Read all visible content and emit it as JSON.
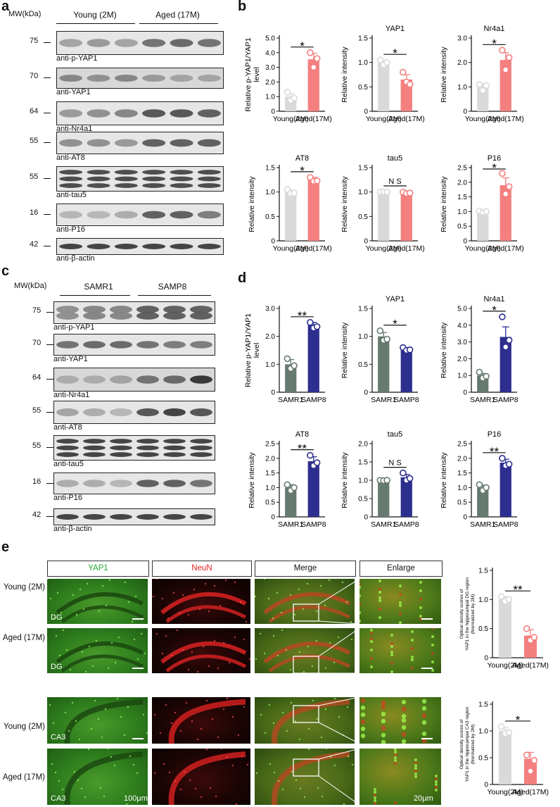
{
  "panels": {
    "a": "a",
    "b": "b",
    "c": "c",
    "d": "d",
    "e": "e"
  },
  "western_a": {
    "mw_header": "MW(kDa)",
    "group1": "Young (2M)",
    "group2": "Aged (17M)",
    "blots": [
      {
        "mw": "75",
        "label": "anti-p-YAP1",
        "style": "dark",
        "pattern": [
          0.35,
          0.4,
          0.35,
          0.6,
          0.65,
          0.6
        ]
      },
      {
        "mw": "70",
        "label": "anti-YAP1",
        "style": "noisy",
        "pattern": [
          0.5,
          0.45,
          0.5,
          0.4,
          0.35,
          0.35
        ]
      },
      {
        "mw": "64",
        "label": "anti-Nr4a1",
        "style": "dark",
        "pattern": [
          0.4,
          0.45,
          0.5,
          0.75,
          0.75,
          0.7
        ]
      },
      {
        "mw": "55",
        "label": "anti-AT8",
        "style": "dark",
        "pattern": [
          0.45,
          0.45,
          0.4,
          0.7,
          0.7,
          0.7
        ]
      },
      {
        "mw": "55",
        "label": "anti-tau5",
        "style": "multi",
        "pattern": [
          0.8,
          0.8,
          0.8,
          0.8,
          0.8,
          0.8
        ]
      },
      {
        "mw": "16",
        "label": "anti-P16",
        "style": "soft",
        "pattern": [
          0.25,
          0.25,
          0.3,
          0.7,
          0.7,
          0.55
        ]
      },
      {
        "mw": "42",
        "label": "anti-β-actin",
        "style": "dark",
        "pattern": [
          0.85,
          0.85,
          0.85,
          0.85,
          0.85,
          0.85
        ]
      }
    ]
  },
  "western_c": {
    "mw_header": "MW(kDa)",
    "group1": "SAMR1",
    "group2": "SAMP8",
    "blots": [
      {
        "mw": "75",
        "label": "anti-p-YAP1",
        "style": "double",
        "pattern": [
          0.45,
          0.5,
          0.5,
          0.7,
          0.7,
          0.7
        ]
      },
      {
        "mw": "70",
        "label": "anti-YAP1",
        "style": "dark",
        "pattern": [
          0.6,
          0.65,
          0.65,
          0.6,
          0.55,
          0.55
        ]
      },
      {
        "mw": "64",
        "label": "anti-Nr4a1",
        "style": "noisy",
        "pattern": [
          0.3,
          0.3,
          0.35,
          0.6,
          0.65,
          0.9
        ]
      },
      {
        "mw": "55",
        "label": "anti-AT8",
        "style": "dark",
        "pattern": [
          0.35,
          0.3,
          0.25,
          0.75,
          0.85,
          0.75
        ]
      },
      {
        "mw": "55",
        "label": "anti-tau5",
        "style": "multi",
        "pattern": [
          0.85,
          0.85,
          0.85,
          0.85,
          0.85,
          0.85
        ]
      },
      {
        "mw": "16",
        "label": "anti-P16",
        "style": "soft",
        "pattern": [
          0.3,
          0.3,
          0.25,
          0.7,
          0.7,
          0.6
        ]
      },
      {
        "mw": "42",
        "label": "anti-β-actin",
        "style": "dark",
        "pattern": [
          0.85,
          0.85,
          0.85,
          0.85,
          0.85,
          0.85
        ]
      }
    ]
  },
  "colors": {
    "young": "#d9d9d9",
    "aged": "#f47f7f",
    "aged_dot": "#f47f7f",
    "samr1": "#667a70",
    "samp8": "#2d2f8f",
    "yap1_header": "#22aa33",
    "neun_header": "#e02020"
  },
  "chart_data": [
    {
      "type": "bar",
      "panel": "b",
      "title": "",
      "ylabel": "Relative p-YAP1/YAP1 level",
      "categories": [
        "Young(2M)",
        "Aged(17M)"
      ],
      "values": [
        1.0,
        3.55
      ],
      "errors": [
        0.22,
        0.4
      ],
      "points": [
        [
          1.3,
          0.75,
          0.9
        ],
        [
          4.0,
          3.0,
          3.6
        ]
      ],
      "ylim": [
        0,
        5
      ],
      "ticks": [
        0,
        1.0,
        2.0,
        3.0,
        4.0,
        5.0
      ],
      "sig": "*",
      "colors": [
        "#d9d9d9",
        "#f47f7f"
      ]
    },
    {
      "type": "bar",
      "panel": "b",
      "title": "YAP1",
      "ylabel": "Relative intensity",
      "categories": [
        "Young(2M)",
        "Aged(17M)"
      ],
      "values": [
        1.0,
        0.65
      ],
      "errors": [
        0.04,
        0.1
      ],
      "points": [
        [
          1.05,
          0.95,
          1.0
        ],
        [
          0.8,
          0.6,
          0.55
        ]
      ],
      "ylim": [
        0,
        1.5
      ],
      "ticks": [
        0,
        0.5,
        1.0,
        1.5
      ],
      "sig": "*",
      "colors": [
        "#d9d9d9",
        "#f47f7f"
      ]
    },
    {
      "type": "bar",
      "panel": "b",
      "title": "Nr4a1",
      "ylabel": "Relative intensity",
      "categories": [
        "Young(2M)",
        "Aged(17M)"
      ],
      "values": [
        1.0,
        2.1
      ],
      "errors": [
        0.12,
        0.3
      ],
      "points": [
        [
          1.1,
          0.85,
          1.05
        ],
        [
          2.5,
          1.7,
          2.2
        ]
      ],
      "ylim": [
        0,
        3
      ],
      "ticks": [
        0,
        1.0,
        2.0,
        3.0
      ],
      "sig": "*",
      "colors": [
        "#d9d9d9",
        "#f47f7f"
      ]
    },
    {
      "type": "bar",
      "panel": "b",
      "title": "AT8",
      "ylabel": "Relative intensity",
      "categories": [
        "Young(2M)",
        "Aged(17M)"
      ],
      "values": [
        1.0,
        1.25
      ],
      "errors": [
        0.04,
        0.05
      ],
      "points": [
        [
          1.05,
          0.97,
          0.98
        ],
        [
          1.3,
          1.22,
          1.23
        ]
      ],
      "ylim": [
        0,
        1.5
      ],
      "ticks": [
        0,
        0.5,
        1.0,
        1.5
      ],
      "sig": "*",
      "colors": [
        "#d9d9d9",
        "#f47f7f"
      ]
    },
    {
      "type": "bar",
      "panel": "b",
      "title": "tau5",
      "ylabel": "Relative intensity",
      "categories": [
        "Young(2M)",
        "Aged(17M)"
      ],
      "values": [
        1.0,
        0.98
      ],
      "errors": [
        0.01,
        0.02
      ],
      "points": [
        [
          1.0,
          1.0,
          1.0
        ],
        [
          1.0,
          0.97,
          0.98
        ]
      ],
      "ylim": [
        0,
        1.5
      ],
      "ticks": [
        0,
        0.5,
        1.0,
        1.5
      ],
      "sig": "N S",
      "colors": [
        "#d9d9d9",
        "#f47f7f"
      ]
    },
    {
      "type": "bar",
      "panel": "b",
      "title": "P16",
      "ylabel": "Relative intensity",
      "categories": [
        "Young(2M)",
        "Aged(17M)"
      ],
      "values": [
        1.0,
        1.9
      ],
      "errors": [
        0.03,
        0.25
      ],
      "points": [
        [
          1.02,
          0.97,
          1.0
        ],
        [
          2.3,
          1.6,
          1.85
        ]
      ],
      "ylim": [
        0,
        2.5
      ],
      "ticks": [
        0,
        0.5,
        1.0,
        1.5,
        2.0,
        2.5
      ],
      "sig": "*",
      "colors": [
        "#d9d9d9",
        "#f47f7f"
      ]
    },
    {
      "type": "bar",
      "panel": "d",
      "title": "",
      "ylabel": "Relative p-YAP1/YAP1 level",
      "categories": [
        "SAMR1",
        "SAMP8"
      ],
      "values": [
        1.0,
        2.4
      ],
      "errors": [
        0.17,
        0.1
      ],
      "points": [
        [
          1.2,
          0.85,
          0.95
        ],
        [
          2.5,
          2.3,
          2.35
        ]
      ],
      "ylim": [
        0,
        3
      ],
      "ticks": [
        0,
        1.0,
        2.0,
        3.0
      ],
      "sig": "**",
      "colors": [
        "#667a70",
        "#2d2f8f"
      ]
    },
    {
      "type": "bar",
      "panel": "d",
      "title": "YAP1",
      "ylabel": "Relative intensity",
      "categories": [
        "SAMR1",
        "SAMP8"
      ],
      "values": [
        1.0,
        0.77
      ],
      "errors": [
        0.07,
        0.03
      ],
      "points": [
        [
          1.1,
          0.93,
          0.95
        ],
        [
          0.8,
          0.75,
          0.76
        ]
      ],
      "ylim": [
        0,
        1.5
      ],
      "ticks": [
        0,
        0.5,
        1.0,
        1.5
      ],
      "sig": "*",
      "colors": [
        "#667a70",
        "#2d2f8f"
      ]
    },
    {
      "type": "bar",
      "panel": "d",
      "title": "Nr4a1",
      "ylabel": "Relative intensity",
      "categories": [
        "SAMR1",
        "SAMP8"
      ],
      "values": [
        1.0,
        3.3
      ],
      "errors": [
        0.12,
        0.6
      ],
      "points": [
        [
          1.2,
          0.85,
          0.95
        ],
        [
          4.5,
          2.7,
          3.1
        ]
      ],
      "ylim": [
        0,
        5
      ],
      "ticks": [
        0,
        1.0,
        2.0,
        3.0,
        4.0,
        5.0
      ],
      "sig": "*",
      "colors": [
        "#667a70",
        "#2d2f8f"
      ]
    },
    {
      "type": "bar",
      "panel": "d",
      "title": "AT8",
      "ylabel": "Relative intensity",
      "categories": [
        "SAMR1",
        "SAMP8"
      ],
      "values": [
        1.0,
        1.9
      ],
      "errors": [
        0.1,
        0.15
      ],
      "points": [
        [
          1.1,
          0.9,
          1.0
        ],
        [
          2.1,
          1.75,
          1.85
        ]
      ],
      "ylim": [
        0,
        2.5
      ],
      "ticks": [
        0,
        0.5,
        1.0,
        1.5,
        2.0,
        2.5
      ],
      "sig": "**",
      "colors": [
        "#667a70",
        "#2d2f8f"
      ]
    },
    {
      "type": "bar",
      "panel": "d",
      "title": "tau5",
      "ylabel": "Relative intensity",
      "categories": [
        "SAMR1",
        "SAMP8"
      ],
      "values": [
        1.0,
        1.08
      ],
      "errors": [
        0.02,
        0.08
      ],
      "points": [
        [
          1.0,
          0.99,
          1.0
        ],
        [
          1.2,
          1.0,
          1.05
        ]
      ],
      "ylim": [
        0,
        2.0
      ],
      "ticks": [
        0,
        0.5,
        1.0,
        1.5,
        2.0
      ],
      "sig": "N S",
      "colors": [
        "#667a70",
        "#2d2f8f"
      ]
    },
    {
      "type": "bar",
      "panel": "d",
      "title": "P16",
      "ylabel": "Relative intensity",
      "categories": [
        "SAMR1",
        "SAMP8"
      ],
      "values": [
        1.0,
        1.85
      ],
      "errors": [
        0.08,
        0.12
      ],
      "points": [
        [
          1.1,
          0.9,
          1.0
        ],
        [
          2.0,
          1.75,
          1.8
        ]
      ],
      "ylim": [
        0,
        2.5
      ],
      "ticks": [
        0,
        0.5,
        1.0,
        1.5,
        2.0,
        2.5
      ],
      "sig": "**",
      "colors": [
        "#667a70",
        "#2d2f8f"
      ]
    },
    {
      "type": "bar",
      "panel": "e",
      "title": "",
      "ylabel": "Optical density scores of YAP1 in the hippocampal DG region (Normalized by 2M)",
      "categories": [
        "Young(2M)",
        "Aged(17M)"
      ],
      "values": [
        1.0,
        0.38
      ],
      "errors": [
        0.05,
        0.1
      ],
      "points": [
        [
          1.05,
          0.97,
          1.0
        ],
        [
          0.5,
          0.3,
          0.35
        ]
      ],
      "ylim": [
        0,
        1.5
      ],
      "ticks": [
        0,
        0.5,
        1.0,
        1.5
      ],
      "sig": "**",
      "colors": [
        "#d9d9d9",
        "#f47f7f"
      ]
    },
    {
      "type": "bar",
      "panel": "e",
      "title": "",
      "ylabel": "Optical density scores of YAP1 in the hippocampal CA3 region (Normalized by 2M)",
      "categories": [
        "Young(2M)",
        "Aged(17M)"
      ],
      "values": [
        1.0,
        0.48
      ],
      "errors": [
        0.06,
        0.12
      ],
      "points": [
        [
          1.08,
          0.95,
          0.97
        ],
        [
          0.55,
          0.25,
          0.45
        ]
      ],
      "ylim": [
        0,
        1.5
      ],
      "ticks": [
        0,
        0.5,
        1.0,
        1.5
      ],
      "sig": "*",
      "colors": [
        "#d9d9d9",
        "#f47f7f"
      ]
    }
  ],
  "imaging": {
    "headers": [
      "YAP1",
      "NeuN",
      "Merge",
      "Enlarge"
    ],
    "rows": [
      "Young (2M)",
      "Aged (17M)",
      "Young (2M)",
      "Aged (17M)"
    ],
    "region_dg": "DG",
    "region_ca3": "CA3",
    "scale_100": "100μm",
    "scale_20": "20μm"
  }
}
